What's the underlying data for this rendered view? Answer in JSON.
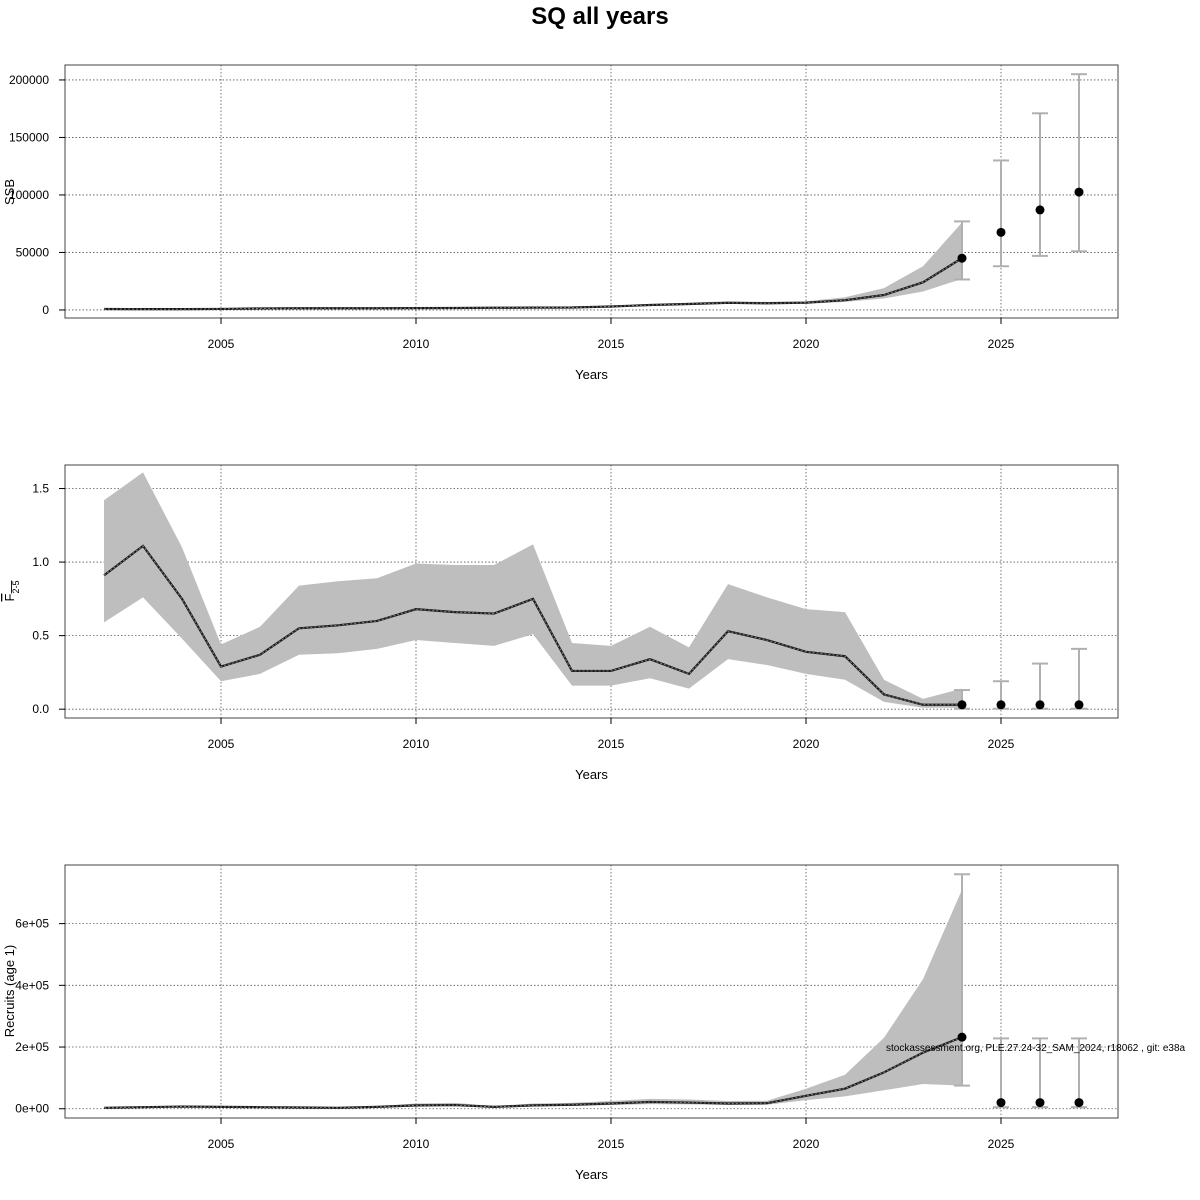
{
  "title": "SQ all years",
  "footnote": "stockassessment.org, PLE.27.24-32_SAM_2024, r18062 , git: e38a",
  "colors": {
    "band": "#bebebe",
    "whisker": "#b0b0b0",
    "line": "#1a1a1a",
    "point": "#000000",
    "grid": "#555555",
    "frame": "#444444"
  },
  "chart_data": [
    {
      "type": "area",
      "xlabel": "Years",
      "ylabel": "SSB",
      "xlim": [
        2001,
        2028
      ],
      "ylim": [
        -7000,
        213000
      ],
      "xticks": [
        2005,
        2010,
        2015,
        2020,
        2025
      ],
      "xtick_labels": [
        "2005",
        "2010",
        "2015",
        "2020",
        "2025"
      ],
      "yticks": [
        0,
        50000,
        100000,
        150000,
        200000
      ],
      "ytick_labels": [
        "0",
        "50000",
        "100000",
        "150000",
        "200000"
      ],
      "grid": true,
      "x": [
        2002,
        2003,
        2004,
        2005,
        2006,
        2007,
        2008,
        2009,
        2010,
        2011,
        2012,
        2013,
        2014,
        2015,
        2016,
        2017,
        2018,
        2019,
        2020,
        2021,
        2022,
        2023,
        2024
      ],
      "estimate": [
        800,
        700,
        700,
        900,
        1300,
        1500,
        1500,
        1500,
        1600,
        1700,
        1900,
        2000,
        2100,
        3000,
        4300,
        5200,
        6200,
        5800,
        6300,
        8500,
        13000,
        24000,
        45000
      ],
      "lower": [
        600,
        500,
        500,
        700,
        1000,
        1200,
        1200,
        1200,
        1300,
        1400,
        1600,
        1700,
        1800,
        2500,
        3600,
        4300,
        5200,
        4900,
        5300,
        7000,
        10000,
        16000,
        27000
      ],
      "upper": [
        1000,
        900,
        900,
        1200,
        1700,
        1900,
        1900,
        1900,
        2000,
        2100,
        2300,
        2500,
        2600,
        3600,
        5100,
        6400,
        7600,
        7000,
        7600,
        11000,
        19000,
        38000,
        76000
      ],
      "forecast": [
        {
          "x": 2024,
          "value": 45000,
          "low": 26500,
          "high": 77000
        },
        {
          "x": 2025,
          "value": 67500,
          "low": 38000,
          "high": 130000
        },
        {
          "x": 2026,
          "value": 87000,
          "low": 47000,
          "high": 171000
        },
        {
          "x": 2027,
          "value": 102500,
          "low": 51000,
          "high": 205000
        }
      ]
    },
    {
      "type": "area",
      "xlabel": "Years",
      "ylabel": "F",
      "ylabel_sub": "2-5",
      "xlim": [
        2001,
        2028
      ],
      "ylim": [
        -0.06,
        1.66
      ],
      "xticks": [
        2005,
        2010,
        2015,
        2020,
        2025
      ],
      "xtick_labels": [
        "2005",
        "2010",
        "2015",
        "2020",
        "2025"
      ],
      "yticks": [
        0,
        0.5,
        1.0,
        1.5
      ],
      "ytick_labels": [
        "0.0",
        "0.5",
        "1.0",
        "1.5"
      ],
      "grid": true,
      "x": [
        2002,
        2003,
        2004,
        2005,
        2006,
        2007,
        2008,
        2009,
        2010,
        2011,
        2012,
        2013,
        2014,
        2015,
        2016,
        2017,
        2018,
        2019,
        2020,
        2021,
        2022,
        2023,
        2024
      ],
      "estimate": [
        0.91,
        1.11,
        0.75,
        0.29,
        0.37,
        0.55,
        0.57,
        0.6,
        0.68,
        0.66,
        0.65,
        0.75,
        0.26,
        0.26,
        0.34,
        0.24,
        0.53,
        0.47,
        0.39,
        0.36,
        0.1,
        0.03,
        0.03
      ],
      "lower": [
        0.59,
        0.76,
        0.48,
        0.19,
        0.24,
        0.37,
        0.38,
        0.41,
        0.47,
        0.45,
        0.43,
        0.51,
        0.16,
        0.16,
        0.21,
        0.14,
        0.34,
        0.3,
        0.24,
        0.2,
        0.05,
        0.01,
        0.01
      ],
      "upper": [
        1.42,
        1.61,
        1.1,
        0.44,
        0.56,
        0.84,
        0.87,
        0.89,
        0.99,
        0.98,
        0.98,
        1.12,
        0.45,
        0.43,
        0.56,
        0.42,
        0.85,
        0.76,
        0.68,
        0.66,
        0.2,
        0.07,
        0.14
      ],
      "forecast": [
        {
          "x": 2024,
          "value": 0.03,
          "low": 0.003,
          "high": 0.13
        },
        {
          "x": 2025,
          "value": 0.03,
          "low": 0.003,
          "high": 0.19
        },
        {
          "x": 2026,
          "value": 0.03,
          "low": 0.003,
          "high": 0.31
        },
        {
          "x": 2027,
          "value": 0.03,
          "low": 0.003,
          "high": 0.41
        }
      ]
    },
    {
      "type": "area",
      "xlabel": "Years",
      "ylabel": "Recruits (age 1)",
      "xlim": [
        2001,
        2028
      ],
      "ylim": [
        -30000,
        790000
      ],
      "xticks": [
        2005,
        2010,
        2015,
        2020,
        2025
      ],
      "xtick_labels": [
        "2005",
        "2010",
        "2015",
        "2020",
        "2025"
      ],
      "yticks": [
        0,
        200000,
        400000,
        600000
      ],
      "ytick_labels": [
        "0e+00",
        "2e+05",
        "4e+05",
        "6e+05"
      ],
      "grid": true,
      "x": [
        2002,
        2003,
        2004,
        2005,
        2006,
        2007,
        2008,
        2009,
        2010,
        2011,
        2012,
        2013,
        2014,
        2015,
        2016,
        2017,
        2018,
        2019,
        2020,
        2021,
        2022,
        2023,
        2024
      ],
      "estimate": [
        3000,
        5000,
        7000,
        6000,
        5000,
        4000,
        3000,
        6000,
        11000,
        12000,
        6000,
        11000,
        13000,
        17000,
        22000,
        20000,
        17000,
        18000,
        42000,
        65000,
        118000,
        182000,
        232000
      ],
      "lower": [
        2000,
        3000,
        5000,
        4000,
        3500,
        2800,
        2000,
        4000,
        7000,
        8000,
        4000,
        7500,
        9000,
        12000,
        15000,
        14000,
        12000,
        13000,
        28000,
        40000,
        60000,
        80000,
        75000
      ],
      "upper": [
        4000,
        7000,
        10000,
        9000,
        7500,
        6000,
        4500,
        9000,
        17000,
        19000,
        9000,
        17000,
        19000,
        25000,
        32000,
        30000,
        25000,
        26000,
        65000,
        110000,
        230000,
        420000,
        710000
      ],
      "forecast": [
        {
          "x": 2024,
          "value": 232000,
          "low": 75000,
          "high": 760000
        },
        {
          "x": 2025,
          "value": 20000,
          "low": 5000,
          "high": 228000
        },
        {
          "x": 2026,
          "value": 20000,
          "low": 5000,
          "high": 228000
        },
        {
          "x": 2027,
          "value": 20000,
          "low": 5000,
          "high": 228000
        }
      ]
    }
  ]
}
